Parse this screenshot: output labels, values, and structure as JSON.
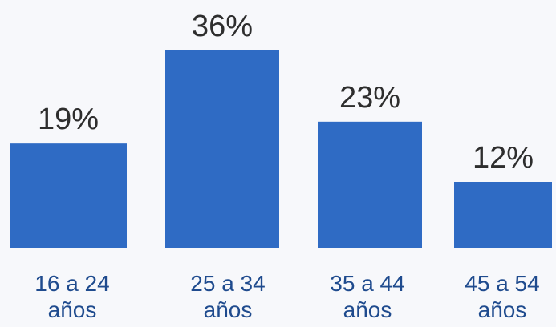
{
  "chart_data": {
    "type": "bar",
    "categories": [
      [
        "16 a 24",
        "años"
      ],
      [
        "25 a 34",
        "años"
      ],
      [
        "35 a 44",
        "años"
      ],
      [
        "45 a 54",
        "años"
      ]
    ],
    "values": [
      19,
      36,
      23,
      12
    ],
    "value_labels": [
      "19%",
      "36%",
      "23%",
      "12%"
    ],
    "ylim": [
      0,
      36
    ],
    "grid": false,
    "legend": "none",
    "colors": {
      "bar": "#2f6bc4",
      "value_text": "#2e2e2e",
      "category_text": "#1f4b8e"
    }
  }
}
